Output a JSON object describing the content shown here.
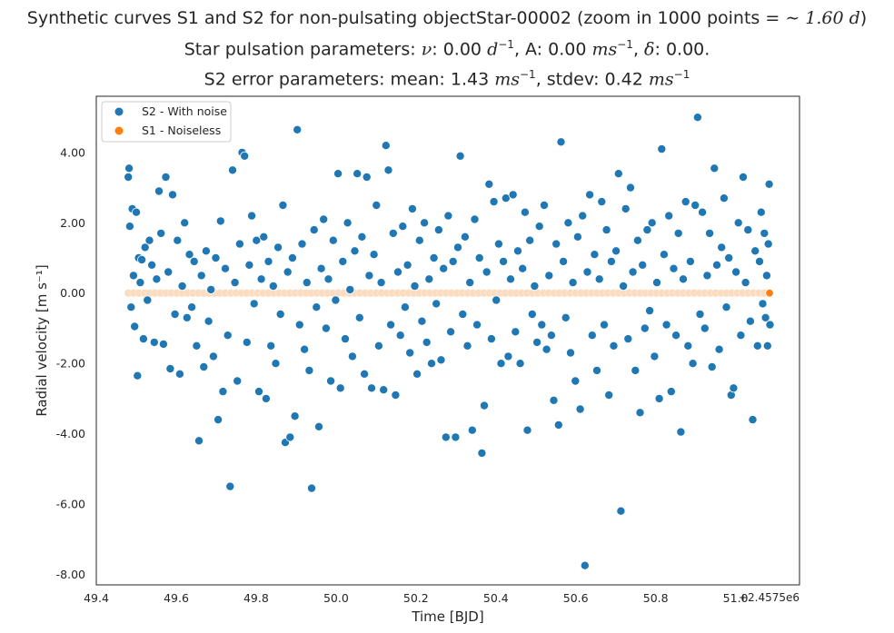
{
  "title": {
    "line1_prefix": "Synthetic curves S1 and S2 for non-pulsating objectStar-00002 (zoom in 1000 points = ",
    "line1_math": "∼ 1.60 d",
    "line1_suffix": ")",
    "line2_prefix": "Star pulsation parameters: ",
    "line2_nu_symbol": "ν",
    "line2_nu_value": ": 0.00 ",
    "line2_nu_unit": "d",
    "line2_nu_exp": "−1",
    "line2_amp_label": ", A: 0.00 ",
    "line2_amp_unit": "ms",
    "line2_amp_exp": "−1",
    "line2_delta_sep": ", ",
    "line2_delta_symbol": "δ",
    "line2_delta_value": ": 0.00.",
    "line3_prefix": "S2 error parameters: mean: 1.43 ",
    "line3_mean_unit": "ms",
    "line3_mean_exp": "−1",
    "line3_stdev_label": ", stdev: 0.42 ",
    "line3_stdev_unit": "ms",
    "line3_stdev_exp": "−1"
  },
  "chart_data": {
    "type": "scatter",
    "xlabel": "Time [BJD]",
    "ylabel": "Radial velocity [m s⁻¹]",
    "x_offset_label": "+2.4575e6",
    "xlim": [
      49.4,
      51.16
    ],
    "ylim": [
      -8.3,
      5.6
    ],
    "xticks": [
      "49.4",
      "49.6",
      "49.8",
      "50.0",
      "50.2",
      "50.4",
      "50.6",
      "50.8",
      "51.0"
    ],
    "yticks": [
      "4.00",
      "2.00",
      "0.00",
      "-2.00",
      "-4.00",
      "-6.00",
      "-8.00"
    ],
    "grid": false,
    "legend_position": "top-left",
    "colors": {
      "s2": "#1f77b4",
      "s1": "#ff7f0e",
      "s1_faded": "#fbdcc0"
    },
    "series": [
      {
        "name": "S2 - With noise",
        "points": [
          [
            49.48,
            3.3
          ],
          [
            49.482,
            3.55
          ],
          [
            49.484,
            1.9
          ],
          [
            49.487,
            -0.4
          ],
          [
            49.49,
            2.4
          ],
          [
            49.493,
            0.5
          ],
          [
            49.496,
            -0.95
          ],
          [
            49.5,
            2.3
          ],
          [
            49.503,
            -2.35
          ],
          [
            49.506,
            1.0
          ],
          [
            49.51,
            0.3
          ],
          [
            49.514,
            0.95
          ],
          [
            49.518,
            -1.3
          ],
          [
            49.522,
            1.3
          ],
          [
            49.528,
            -0.2
          ],
          [
            49.533,
            1.5
          ],
          [
            49.539,
            0.8
          ],
          [
            49.545,
            -1.4
          ],
          [
            49.551,
            0.4
          ],
          [
            49.557,
            2.9
          ],
          [
            49.562,
            1.7
          ],
          [
            49.568,
            -1.45
          ],
          [
            49.574,
            3.3
          ],
          [
            49.58,
            0.6
          ],
          [
            49.585,
            -2.15
          ],
          [
            49.591,
            2.8
          ],
          [
            49.597,
            -0.6
          ],
          [
            49.603,
            1.5
          ],
          [
            49.609,
            -2.3
          ],
          [
            49.615,
            0.2
          ],
          [
            49.621,
            2.0
          ],
          [
            49.627,
            -0.7
          ],
          [
            49.633,
            1.1
          ],
          [
            49.639,
            -0.4
          ],
          [
            49.645,
            0.9
          ],
          [
            49.651,
            -1.5
          ],
          [
            49.657,
            -4.2
          ],
          [
            49.663,
            0.5
          ],
          [
            49.669,
            -2.1
          ],
          [
            49.675,
            1.2
          ],
          [
            49.681,
            -0.8
          ],
          [
            49.687,
            0.1
          ],
          [
            49.693,
            -1.8
          ],
          [
            49.699,
            1.0
          ],
          [
            49.705,
            -3.6
          ],
          [
            49.711,
            2.05
          ],
          [
            49.717,
            -2.8
          ],
          [
            49.723,
            0.7
          ],
          [
            49.729,
            -1.2
          ],
          [
            49.735,
            -5.5
          ],
          [
            49.741,
            3.5
          ],
          [
            49.747,
            0.3
          ],
          [
            49.753,
            -2.5
          ],
          [
            49.759,
            1.4
          ],
          [
            49.765,
            4.0
          ],
          [
            49.771,
            3.9
          ],
          [
            49.777,
            -1.4
          ],
          [
            49.783,
            0.8
          ],
          [
            49.789,
            2.2
          ],
          [
            49.795,
            -0.3
          ],
          [
            49.801,
            1.5
          ],
          [
            49.807,
            -2.8
          ],
          [
            49.813,
            0.4
          ],
          [
            49.819,
            1.6
          ],
          [
            49.825,
            -3.0
          ],
          [
            49.831,
            0.9
          ],
          [
            49.837,
            -1.5
          ],
          [
            49.843,
            0.2
          ],
          [
            49.849,
            -2.0
          ],
          [
            49.855,
            1.3
          ],
          [
            49.861,
            -0.6
          ],
          [
            49.867,
            2.5
          ],
          [
            49.873,
            -4.25
          ],
          [
            49.879,
            0.6
          ],
          [
            49.885,
            -4.1
          ],
          [
            49.891,
            1.0
          ],
          [
            49.897,
            -3.5
          ],
          [
            49.903,
            4.65
          ],
          [
            49.909,
            -0.9
          ],
          [
            49.915,
            1.4
          ],
          [
            49.921,
            -1.6
          ],
          [
            49.927,
            0.3
          ],
          [
            49.933,
            -2.2
          ],
          [
            49.939,
            -5.55
          ],
          [
            49.945,
            1.8
          ],
          [
            49.951,
            -0.4
          ],
          [
            49.957,
            -3.8
          ],
          [
            49.963,
            0.7
          ],
          [
            49.969,
            2.1
          ],
          [
            49.975,
            -1.0
          ],
          [
            49.981,
            0.4
          ],
          [
            49.987,
            -2.5
          ],
          [
            49.993,
            1.5
          ],
          [
            49.999,
            -0.2
          ],
          [
            50.005,
            3.4
          ],
          [
            50.011,
            -2.7
          ],
          [
            50.017,
            0.9
          ],
          [
            50.023,
            -1.3
          ],
          [
            50.029,
            2.0
          ],
          [
            50.035,
            0.1
          ],
          [
            50.041,
            -1.8
          ],
          [
            50.047,
            1.2
          ],
          [
            50.053,
            3.4
          ],
          [
            50.059,
            -0.7
          ],
          [
            50.065,
            1.6
          ],
          [
            50.071,
            -2.3
          ],
          [
            50.077,
            3.3
          ],
          [
            50.083,
            0.5
          ],
          [
            50.089,
            -2.7
          ],
          [
            50.095,
            1.1
          ],
          [
            50.101,
            2.5
          ],
          [
            50.107,
            -1.5
          ],
          [
            50.113,
            0.3
          ],
          [
            50.119,
            -2.75
          ],
          [
            50.125,
            4.2
          ],
          [
            50.131,
            3.5
          ],
          [
            50.137,
            -0.9
          ],
          [
            50.143,
            1.7
          ],
          [
            50.149,
            -2.9
          ],
          [
            50.155,
            0.6
          ],
          [
            50.161,
            -1.2
          ],
          [
            50.167,
            1.9
          ],
          [
            50.173,
            -0.4
          ],
          [
            50.179,
            0.8
          ],
          [
            50.185,
            -1.7
          ],
          [
            50.191,
            2.4
          ],
          [
            50.197,
            0.2
          ],
          [
            50.203,
            -2.3
          ],
          [
            50.209,
            1.5
          ],
          [
            50.215,
            -0.8
          ],
          [
            50.221,
            2.0
          ],
          [
            50.227,
            -1.4
          ],
          [
            50.233,
            0.4
          ],
          [
            50.239,
            -2.0
          ],
          [
            50.245,
            1.0
          ],
          [
            50.251,
            -0.3
          ],
          [
            50.257,
            1.8
          ],
          [
            50.263,
            -1.9
          ],
          [
            50.269,
            0.7
          ],
          [
            50.275,
            -4.1
          ],
          [
            50.281,
            2.2
          ],
          [
            50.287,
            -1.1
          ],
          [
            50.293,
            0.9
          ],
          [
            50.299,
            -4.1
          ],
          [
            50.305,
            1.3
          ],
          [
            50.311,
            3.9
          ],
          [
            50.317,
            -0.6
          ],
          [
            50.323,
            1.6
          ],
          [
            50.329,
            -1.5
          ],
          [
            50.335,
            0.3
          ],
          [
            50.341,
            -3.9
          ],
          [
            50.347,
            2.1
          ],
          [
            50.353,
            -0.9
          ],
          [
            50.359,
            1.0
          ],
          [
            50.365,
            -4.55
          ],
          [
            50.371,
            -3.2
          ],
          [
            50.377,
            0.6
          ],
          [
            50.383,
            3.1
          ],
          [
            50.389,
            -1.3
          ],
          [
            50.395,
            2.6
          ],
          [
            50.401,
            -0.2
          ],
          [
            50.407,
            1.4
          ],
          [
            50.413,
            -2.0
          ],
          [
            50.419,
            0.9
          ],
          [
            50.425,
            2.7
          ],
          [
            50.431,
            -1.8
          ],
          [
            50.437,
            0.4
          ],
          [
            50.443,
            2.8
          ],
          [
            50.449,
            -1.1
          ],
          [
            50.455,
            1.2
          ],
          [
            50.461,
            -2.0
          ],
          [
            50.467,
            0.7
          ],
          [
            50.473,
            2.3
          ],
          [
            50.479,
            -3.9
          ],
          [
            50.485,
            1.5
          ],
          [
            50.491,
            -0.6
          ],
          [
            50.497,
            0.2
          ],
          [
            50.503,
            -1.4
          ],
          [
            50.509,
            1.9
          ],
          [
            50.515,
            -0.9
          ],
          [
            50.521,
            2.5
          ],
          [
            50.527,
            -1.6
          ],
          [
            50.533,
            0.5
          ],
          [
            50.539,
            -1.2
          ],
          [
            50.545,
            -3.05
          ],
          [
            50.551,
            1.4
          ],
          [
            50.557,
            -3.75
          ],
          [
            50.563,
            4.3
          ],
          [
            50.569,
            0.9
          ],
          [
            50.575,
            -0.7
          ],
          [
            50.581,
            2.0
          ],
          [
            50.587,
            -1.7
          ],
          [
            50.593,
            0.3
          ],
          [
            50.599,
            -2.5
          ],
          [
            50.605,
            1.6
          ],
          [
            50.611,
            -3.3
          ],
          [
            50.617,
            2.2
          ],
          [
            50.623,
            -7.75
          ],
          [
            50.629,
            0.6
          ],
          [
            50.635,
            2.8
          ],
          [
            50.641,
            -1.2
          ],
          [
            50.647,
            1.1
          ],
          [
            50.653,
            -2.2
          ],
          [
            50.659,
            0.4
          ],
          [
            50.665,
            2.6
          ],
          [
            50.671,
            -0.9
          ],
          [
            50.677,
            1.8
          ],
          [
            50.683,
            -2.9
          ],
          [
            50.689,
            0.9
          ],
          [
            50.695,
            -1.5
          ],
          [
            50.701,
            1.2
          ],
          [
            50.707,
            3.4
          ],
          [
            50.713,
            -6.2
          ],
          [
            50.719,
            0.2
          ],
          [
            50.725,
            2.4
          ],
          [
            50.731,
            -1.3
          ],
          [
            50.737,
            3.0
          ],
          [
            50.743,
            0.6
          ],
          [
            50.749,
            -2.2
          ],
          [
            50.755,
            1.5
          ],
          [
            50.761,
            -3.4
          ],
          [
            50.767,
            0.8
          ],
          [
            50.773,
            -1.0
          ],
          [
            50.779,
            1.8
          ],
          [
            50.785,
            -0.5
          ],
          [
            50.791,
            2.0
          ],
          [
            50.797,
            -1.8
          ],
          [
            50.803,
            0.3
          ],
          [
            50.809,
            -3.0
          ],
          [
            50.815,
            4.1
          ],
          [
            50.821,
            1.1
          ],
          [
            50.827,
            -0.9
          ],
          [
            50.833,
            2.2
          ],
          [
            50.839,
            -2.8
          ],
          [
            50.845,
            0.7
          ],
          [
            50.851,
            -1.2
          ],
          [
            50.857,
            1.7
          ],
          [
            50.863,
            -3.95
          ],
          [
            50.869,
            0.4
          ],
          [
            50.875,
            2.6
          ],
          [
            50.881,
            -1.5
          ],
          [
            50.887,
            0.9
          ],
          [
            50.893,
            -2.0
          ],
          [
            50.899,
            2.5
          ],
          [
            50.905,
            5.0
          ],
          [
            50.911,
            -0.6
          ],
          [
            50.917,
            2.3
          ],
          [
            50.923,
            -1.0
          ],
          [
            50.929,
            0.5
          ],
          [
            50.935,
            1.7
          ],
          [
            50.941,
            -2.1
          ],
          [
            50.947,
            3.55
          ],
          [
            50.953,
            0.8
          ],
          [
            50.959,
            -1.6
          ],
          [
            50.965,
            1.3
          ],
          [
            50.971,
            2.7
          ],
          [
            50.977,
            -0.4
          ],
          [
            50.983,
            1.0
          ],
          [
            50.989,
            -2.9
          ],
          [
            50.995,
            -2.7
          ],
          [
            51.001,
            0.6
          ],
          [
            51.007,
            2.0
          ],
          [
            51.013,
            -1.2
          ],
          [
            51.019,
            3.3
          ],
          [
            51.025,
            0.3
          ],
          [
            51.031,
            1.8
          ],
          [
            51.037,
            -0.8
          ],
          [
            51.043,
            -3.6
          ],
          [
            51.049,
            1.2
          ],
          [
            51.055,
            -1.5
          ],
          [
            51.06,
            0.9
          ],
          [
            51.064,
            2.3
          ],
          [
            51.068,
            -0.3
          ],
          [
            51.072,
            1.7
          ],
          [
            51.075,
            -0.7
          ],
          [
            51.078,
            0.5
          ],
          [
            51.08,
            -1.5
          ],
          [
            51.082,
            1.4
          ],
          [
            51.084,
            3.1
          ],
          [
            51.086,
            -0.9
          ]
        ]
      },
      {
        "name": "S1 - Noiseless",
        "x_start": 49.48,
        "x_end": 51.085,
        "y": 0.0
      }
    ]
  }
}
